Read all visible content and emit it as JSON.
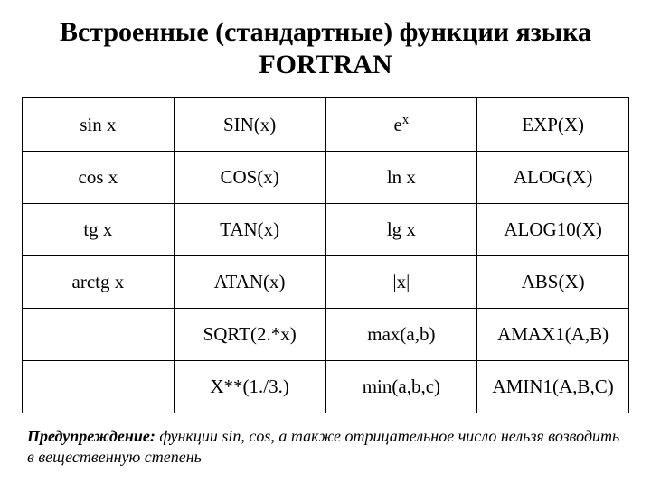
{
  "title": "Встроенные (стандартные) функции языка FORTRAN",
  "table": {
    "type": "table",
    "columns": 4,
    "rows": 6,
    "border_color": "#000000",
    "cell_fontsize": 21,
    "cells": {
      "r0c0": "sin x",
      "r0c1": "SIN(x)",
      "r0c2_base": "e",
      "r0c2_sup": "x",
      "r0c3": "EXP(X)",
      "r1c0": "cos x",
      "r1c1": "COS(x)",
      "r1c2": "ln x",
      "r1c3": "ALOG(X)",
      "r2c0": "tg x",
      "r2c1": "TAN(x)",
      "r2c2": "lg x",
      "r2c3": "ALOG10(X)",
      "r3c0": "arctg x",
      "r3c1": "ATAN(x)",
      "r3c2": "|x|",
      "r3c3": "ABS(X)",
      "r4c0": "",
      "r4c1": "SQRT(2.*x)",
      "r4c2": "max(a,b)",
      "r4c3": "AMAX1(A,B)",
      "r5c0": "",
      "r5c1": "X**(1./3.)",
      "r5c2": "min(a,b,c)",
      "r5c3": "AMIN1(A,B,C)"
    }
  },
  "note": {
    "label": "Предупреждение:",
    "text": " функции sin, cos, а также отрицательное число нельзя возводить в вещественную степень"
  },
  "colors": {
    "background": "#ffffff",
    "text": "#000000"
  },
  "typography": {
    "title_fontsize": 30,
    "title_weight": "bold",
    "note_fontsize": 18,
    "font_family": "Times New Roman"
  }
}
